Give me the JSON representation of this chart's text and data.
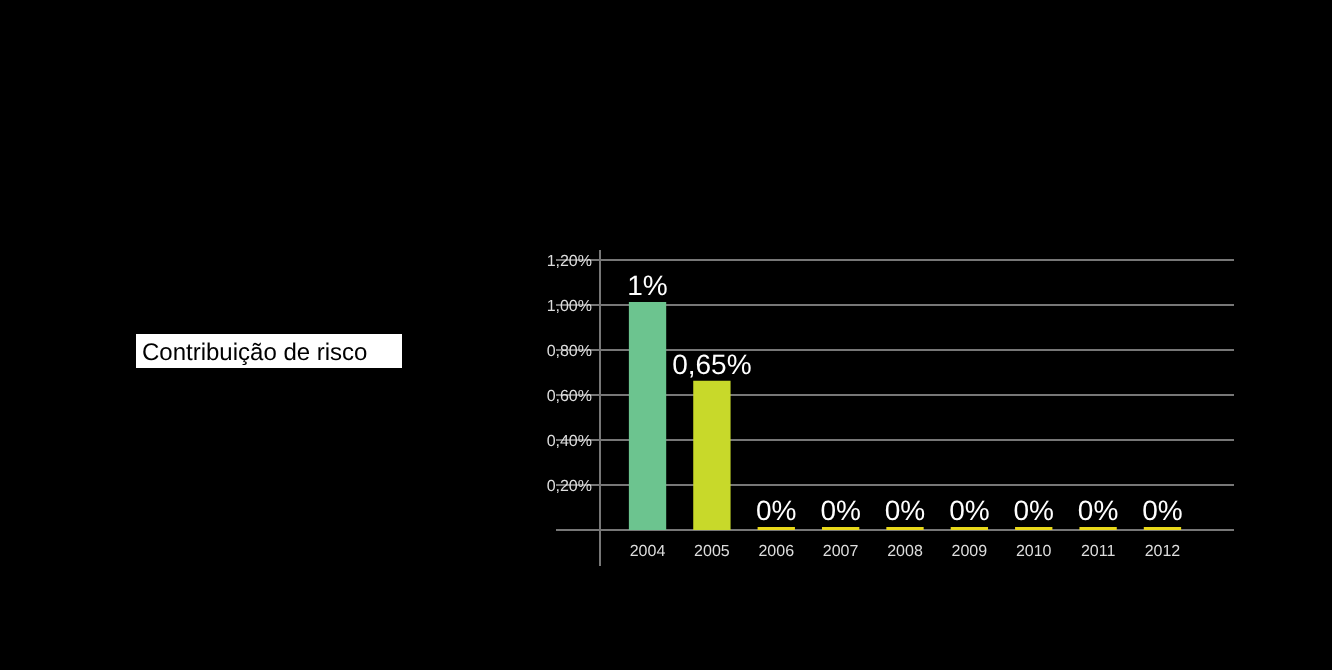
{
  "chart_data": {
    "type": "bar",
    "title": "Contribuição de risco",
    "categories": [
      "2004",
      "2005",
      "2006",
      "2007",
      "2008",
      "2009",
      "2010",
      "2011",
      "2012"
    ],
    "values": [
      1,
      0.65,
      0,
      0,
      0,
      0,
      0,
      0,
      0
    ],
    "colors": [
      "#6cc48f",
      "#c8d92a",
      "#e8d81a",
      "#e8d81a",
      "#e8d81a",
      "#e8d81a",
      "#e8d81a",
      "#e8d81a",
      "#e8d81a"
    ],
    "value_labels": [
      "1%",
      "0,65%",
      "0%",
      "0%",
      "0%",
      "0%",
      "0%",
      "0%",
      "0%"
    ],
    "ylim": [
      0,
      1.2
    ],
    "yticks": [
      {
        "value": 0,
        "label": null
      },
      {
        "value": 0.2,
        "label": "0,20%"
      },
      {
        "value": 0.4,
        "label": "0,40%"
      },
      {
        "value": 0.6,
        "label": "0,60%"
      },
      {
        "value": 0.8,
        "label": "0,80%"
      },
      {
        "value": 1,
        "label": "1,00%"
      },
      {
        "value": 1.2,
        "label": "1,20%"
      }
    ],
    "grid": "y"
  }
}
